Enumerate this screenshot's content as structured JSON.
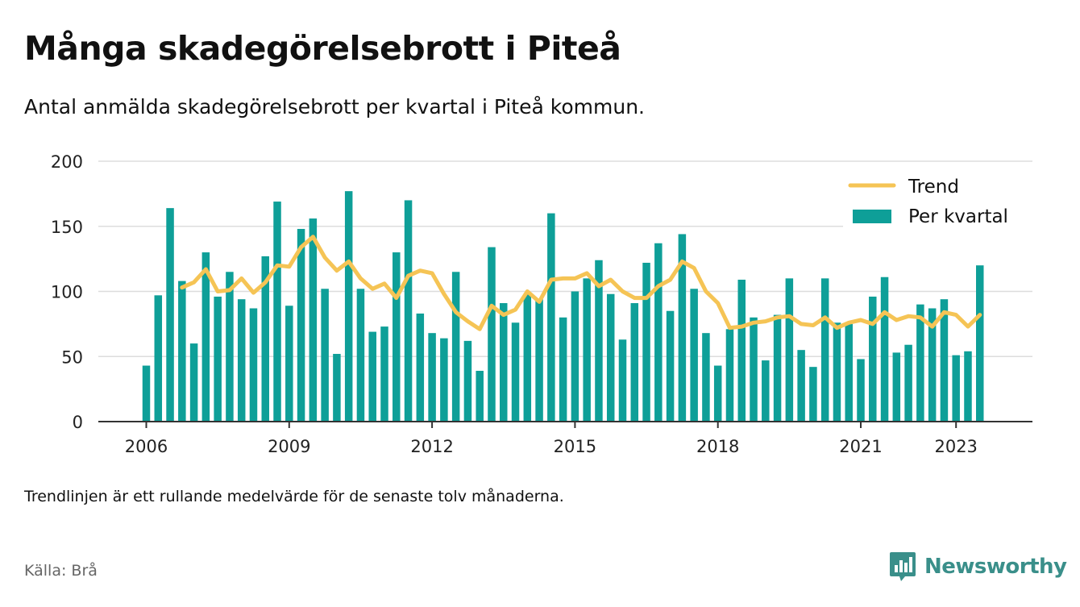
{
  "title": "Många skadegörelsebrott i Piteå",
  "subtitle": "Antal anmälda skadegörelsebrott per kvartal i Piteå kommun.",
  "note": "Trendlinjen är ett rullande medelvärde för de senaste tolv månaderna.",
  "source": "Källa: Brå",
  "brand": "Newsworthy",
  "colors": {
    "bar": "#0e9f98",
    "trend": "#f5c455",
    "grid": "#dddddd",
    "axis": "#333333",
    "brand": "#3a8f8a"
  },
  "chart_data": {
    "type": "bar",
    "x_ticks": [
      "2006",
      "2009",
      "2012",
      "2015",
      "2018",
      "2021",
      "2023"
    ],
    "y_ticks": [
      "0",
      "50",
      "100",
      "150",
      "200"
    ],
    "ylim": [
      0,
      200
    ],
    "xlim_years": [
      2005.0,
      2024.5
    ],
    "first_quarter": "2006 Q1",
    "legend": {
      "trend": "Trend",
      "bars": "Per kvartal",
      "position": "top-right"
    },
    "series": [
      {
        "name": "Per kvartal",
        "values": [
          43,
          97,
          164,
          108,
          60,
          130,
          96,
          115,
          94,
          87,
          127,
          169,
          89,
          148,
          156,
          102,
          52,
          177,
          102,
          69,
          73,
          130,
          170,
          83,
          68,
          64,
          115,
          62,
          39,
          134,
          91,
          76,
          98,
          94,
          160,
          80,
          100,
          110,
          124,
          98,
          63,
          91,
          122,
          137,
          85,
          144,
          102,
          68,
          43,
          71,
          109,
          80,
          47,
          82,
          110,
          55,
          42,
          110,
          76,
          75,
          48,
          96,
          111,
          53,
          59,
          90,
          87,
          94,
          51,
          54,
          120
        ]
      },
      {
        "name": "Trend",
        "values": [
          null,
          null,
          null,
          103,
          107,
          117,
          100,
          101,
          110,
          99,
          107,
          120,
          119,
          134,
          142,
          126,
          116,
          123,
          110,
          102,
          106,
          95,
          112,
          116,
          114,
          98,
          84,
          77,
          71,
          89,
          82,
          86,
          100,
          92,
          109,
          110,
          110,
          114,
          104,
          109,
          100,
          95,
          95,
          104,
          109,
          123,
          118,
          100,
          91,
          72,
          73,
          76,
          77,
          80,
          81,
          75,
          74,
          80,
          72,
          76,
          78,
          75,
          84,
          78,
          81,
          80,
          73,
          84,
          82,
          73,
          82
        ]
      }
    ]
  }
}
